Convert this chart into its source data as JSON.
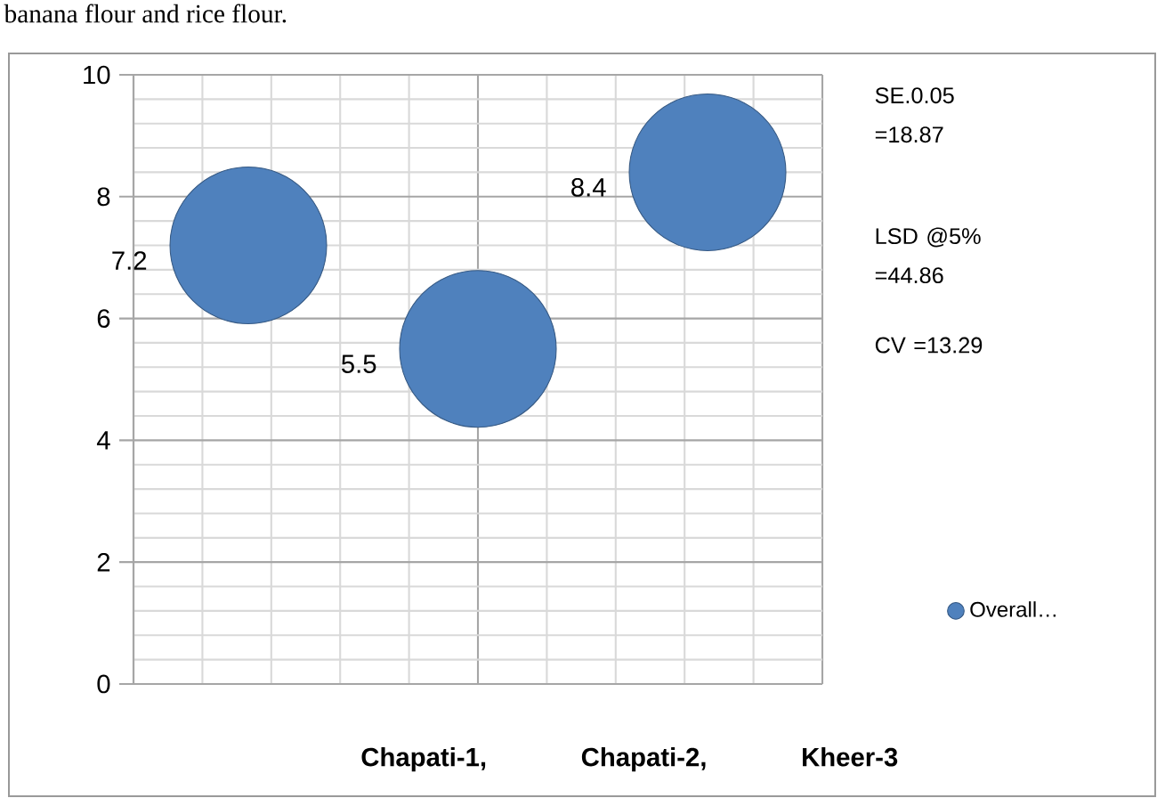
{
  "chart_data": {
    "type": "bubble",
    "xlabel": "Chapati-1, Chapati-2, Kheer-3",
    "categories": [
      null,
      null,
      null
    ],
    "series": [
      {
        "name": "Overall…",
        "color": "#4f81bd",
        "values": [
          7.2,
          5.5,
          8.4
        ],
        "sizes": [
          1,
          1,
          1
        ]
      }
    ],
    "ylim": [
      0,
      10
    ],
    "yticks": [
      0,
      2,
      4,
      6,
      8,
      10
    ],
    "tick_labels": "y",
    "grid": true,
    "legend": "bottom right",
    "data_labels": true,
    "marker": "circle",
    "annotations": [
      "banana flour and rice flour.",
      "SE.0.05 =18.87",
      "LSD @5% =44.86",
      "CV =13.29"
    ]
  }
}
